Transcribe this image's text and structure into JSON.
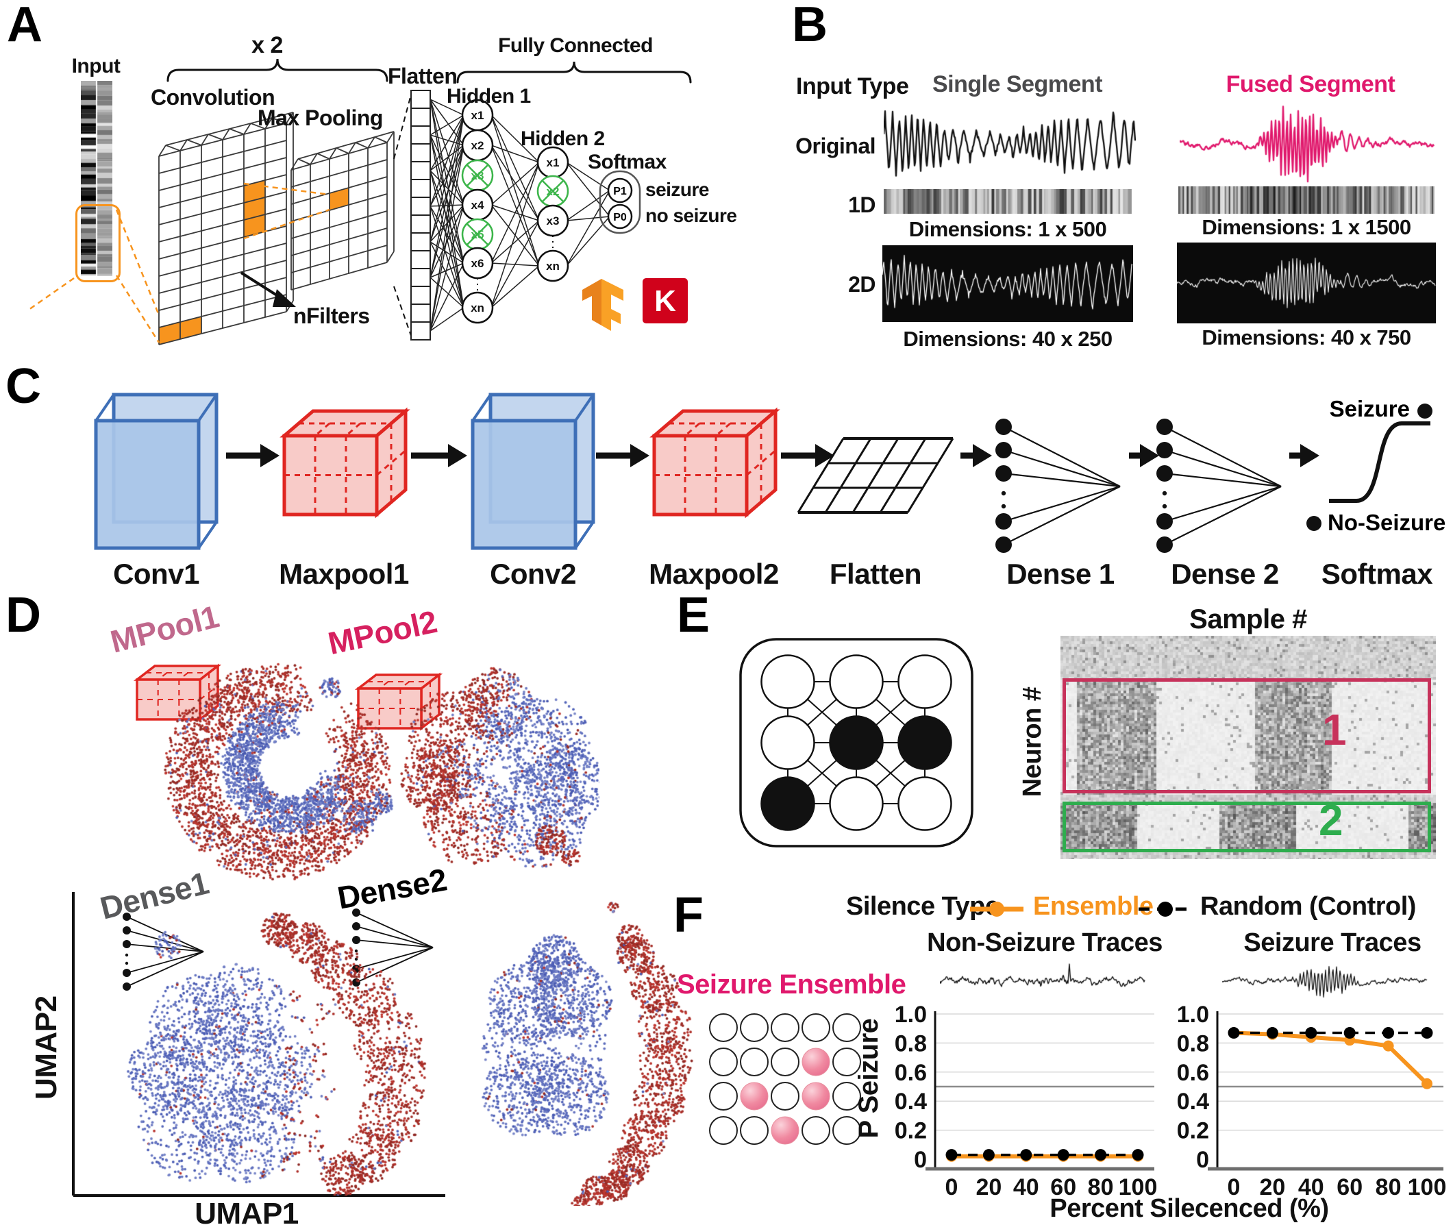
{
  "colors": {
    "orange": "#F7941E",
    "pink": "#E0186C",
    "rosy": "#C0688C",
    "magenta": "#D6205F",
    "gray_dense1": "#58595B",
    "crimson_box": "#C7325B",
    "green_box": "#2EAD4E",
    "dropout_green": "#3CB54A",
    "scatter_red": "#B22A26",
    "scatter_blue": "#5A66B4",
    "conv_blue_stroke": "#3E6FB7",
    "conv_blue_fill": "#A9C6E8",
    "pool_red": "#E02621",
    "pool_fill": "#F8CBC8",
    "keras_red": "#D0021B",
    "single_gray": "#4A4A4C"
  },
  "panel_a": {
    "label": "A",
    "input_label": "Input",
    "times_label": "x 2",
    "conv_label": "Convolution",
    "pool_label": "Max Pooling",
    "nfilters_label": "nFilters",
    "flatten_label": "Flatten",
    "fc_label": "Fully Connected",
    "hidden1_label": "Hidden 1",
    "hidden2_label": "Hidden 2",
    "softmax_label": "Softmax",
    "h1_nodes": [
      "x1",
      "x2",
      "x3",
      "x4",
      "x5",
      "x6",
      "xn"
    ],
    "h1_dropped": [
      2,
      4
    ],
    "h2_nodes": [
      "x1",
      "x2",
      "x3",
      "xn"
    ],
    "h2_dropped": [
      1
    ],
    "out_nodes": [
      "P1",
      "P0"
    ],
    "out_labels": [
      "seizure",
      "no seizure"
    ],
    "keras_letter": "K"
  },
  "panel_b": {
    "label": "B",
    "input_type": "Input Type",
    "single_header": "Single Segment",
    "fused_header": "Fused Segment",
    "rows": [
      "Original",
      "1D",
      "2D"
    ],
    "dims_1d": [
      "Dimensions: 1 x 500",
      "Dimensions: 1 x 1500"
    ],
    "dims_2d": [
      "Dimensions: 40 x 250",
      "Dimensions: 40 x 750"
    ]
  },
  "panel_c": {
    "label": "C",
    "stages": [
      "Conv1",
      "Maxpool1",
      "Conv2",
      "Maxpool2",
      "Flatten",
      "Dense 1",
      "Dense 2",
      "Softmax"
    ],
    "seizure": "Seizure",
    "no_seizure": "No-Seizure"
  },
  "panel_d": {
    "label": "D",
    "mpool1": "MPool1",
    "mpool2": "MPool2",
    "dense1": "Dense1",
    "dense2": "Dense2",
    "xlabel": "UMAP1",
    "ylabel": "UMAP2"
  },
  "panel_e": {
    "label": "E",
    "sample": "Sample #",
    "neuron": "Neuron #",
    "box1": "1",
    "box2": "2"
  },
  "panel_f": {
    "label": "F",
    "legend_title": "Silence Type",
    "ensemble": "Ensemble",
    "random": "Random (Control)",
    "seizure_ensemble": "Seizure Ensemble",
    "ensemble_grid": [
      [
        0,
        0,
        0,
        0,
        0
      ],
      [
        0,
        0,
        0,
        1,
        0
      ],
      [
        0,
        1,
        0,
        1,
        0
      ],
      [
        0,
        0,
        1,
        0,
        0
      ]
    ],
    "titles": [
      "Non-Seizure Traces",
      "Seizure Traces"
    ],
    "ylabel": "P Seizure",
    "xlabel": "Percent Silecenced (%)"
  },
  "chart_data": [
    {
      "type": "line",
      "title": "Non-Seizure Traces",
      "x": [
        0,
        20,
        40,
        60,
        80,
        100
      ],
      "xticks": [
        "0",
        "20",
        "40",
        "60",
        "80",
        "100"
      ],
      "series": [
        {
          "name": "Ensemble",
          "values": [
            0.02,
            0.02,
            0.02,
            0.02,
            0.02,
            0.02
          ],
          "color": "#F7941E",
          "style": "solid"
        },
        {
          "name": "Random (Control)",
          "values": [
            0.03,
            0.03,
            0.03,
            0.03,
            0.03,
            0.03
          ],
          "color": "#000000",
          "style": "dashed"
        }
      ],
      "ylim": [
        0,
        1.0
      ],
      "yticks": [
        "0",
        "0.2",
        "0.4",
        "0.6",
        "0.8",
        "1.0"
      ],
      "threshold": 0.5,
      "xlabel": "Percent Silecenced (%)",
      "ylabel": "P Seizure",
      "legend_position": "top"
    },
    {
      "type": "line",
      "title": "Seizure Traces",
      "x": [
        0,
        20,
        40,
        60,
        80,
        100
      ],
      "xticks": [
        "0",
        "20",
        "40",
        "60",
        "80",
        "100"
      ],
      "series": [
        {
          "name": "Ensemble",
          "values": [
            0.87,
            0.86,
            0.84,
            0.82,
            0.78,
            0.52
          ],
          "color": "#F7941E",
          "style": "solid"
        },
        {
          "name": "Random (Control)",
          "values": [
            0.87,
            0.87,
            0.87,
            0.87,
            0.87,
            0.87
          ],
          "color": "#000000",
          "style": "dashed"
        }
      ],
      "ylim": [
        0,
        1.0
      ],
      "yticks": [
        "0",
        "0.2",
        "0.4",
        "0.6",
        "0.8",
        "1.0"
      ],
      "threshold": 0.5,
      "xlabel": "Percent Silecenced (%)",
      "ylabel": "P Seizure",
      "legend_position": "top"
    }
  ]
}
